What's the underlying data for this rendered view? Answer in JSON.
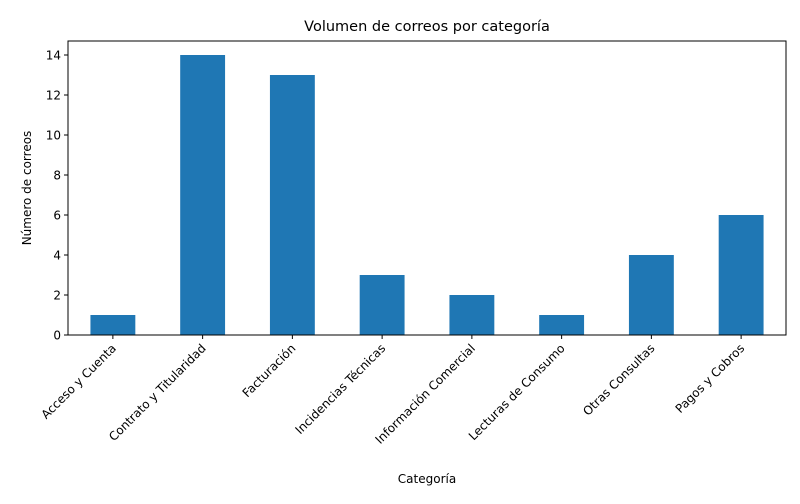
{
  "chart_data": {
    "type": "bar",
    "title": "Volumen de correos por categoría",
    "xlabel": "Categoría",
    "ylabel": "Número de correos",
    "categories": [
      "Acceso y Cuenta",
      "Contrato y Titularidad",
      "Facturación",
      "Incidencias Técnicas",
      "Información Comercial",
      "Lecturas de Consumo",
      "Otras Consultas",
      "Pagos y Cobros"
    ],
    "values": [
      1,
      14,
      13,
      3,
      2,
      1,
      4,
      6
    ],
    "ylim": [
      0,
      14.7
    ],
    "yticks": [
      0,
      2,
      4,
      6,
      8,
      10,
      12,
      14
    ],
    "bar_color": "#1f77b4",
    "grid": false,
    "legend": "none"
  }
}
